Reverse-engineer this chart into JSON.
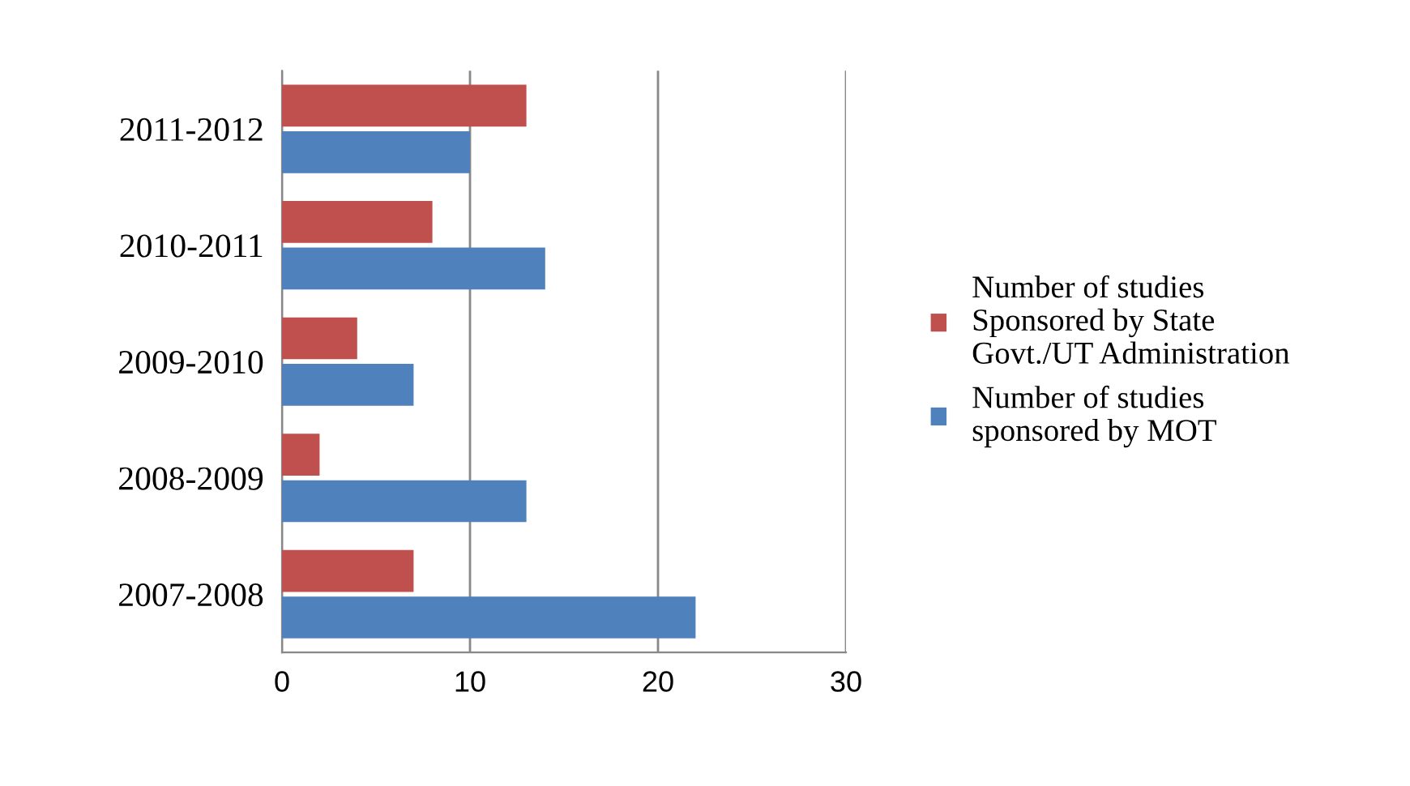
{
  "chart_data": {
    "type": "bar",
    "orientation": "horizontal",
    "categories": [
      "2011-2012",
      "2010-2011",
      "2009-2010",
      "2008-2009",
      "2007-2008"
    ],
    "series": [
      {
        "name": "Number of studies Sponsored by State Govt./UT Administration",
        "color": "#c0504d",
        "values": [
          13,
          8,
          4,
          2,
          7
        ]
      },
      {
        "name": "Number of studies sponsored by MOT",
        "color": "#4f81bd",
        "values": [
          10,
          14,
          7,
          13,
          22
        ]
      }
    ],
    "xlim": [
      0,
      30
    ],
    "xticks": [
      0,
      10,
      20,
      30
    ],
    "grid": "x",
    "legend": "right"
  }
}
